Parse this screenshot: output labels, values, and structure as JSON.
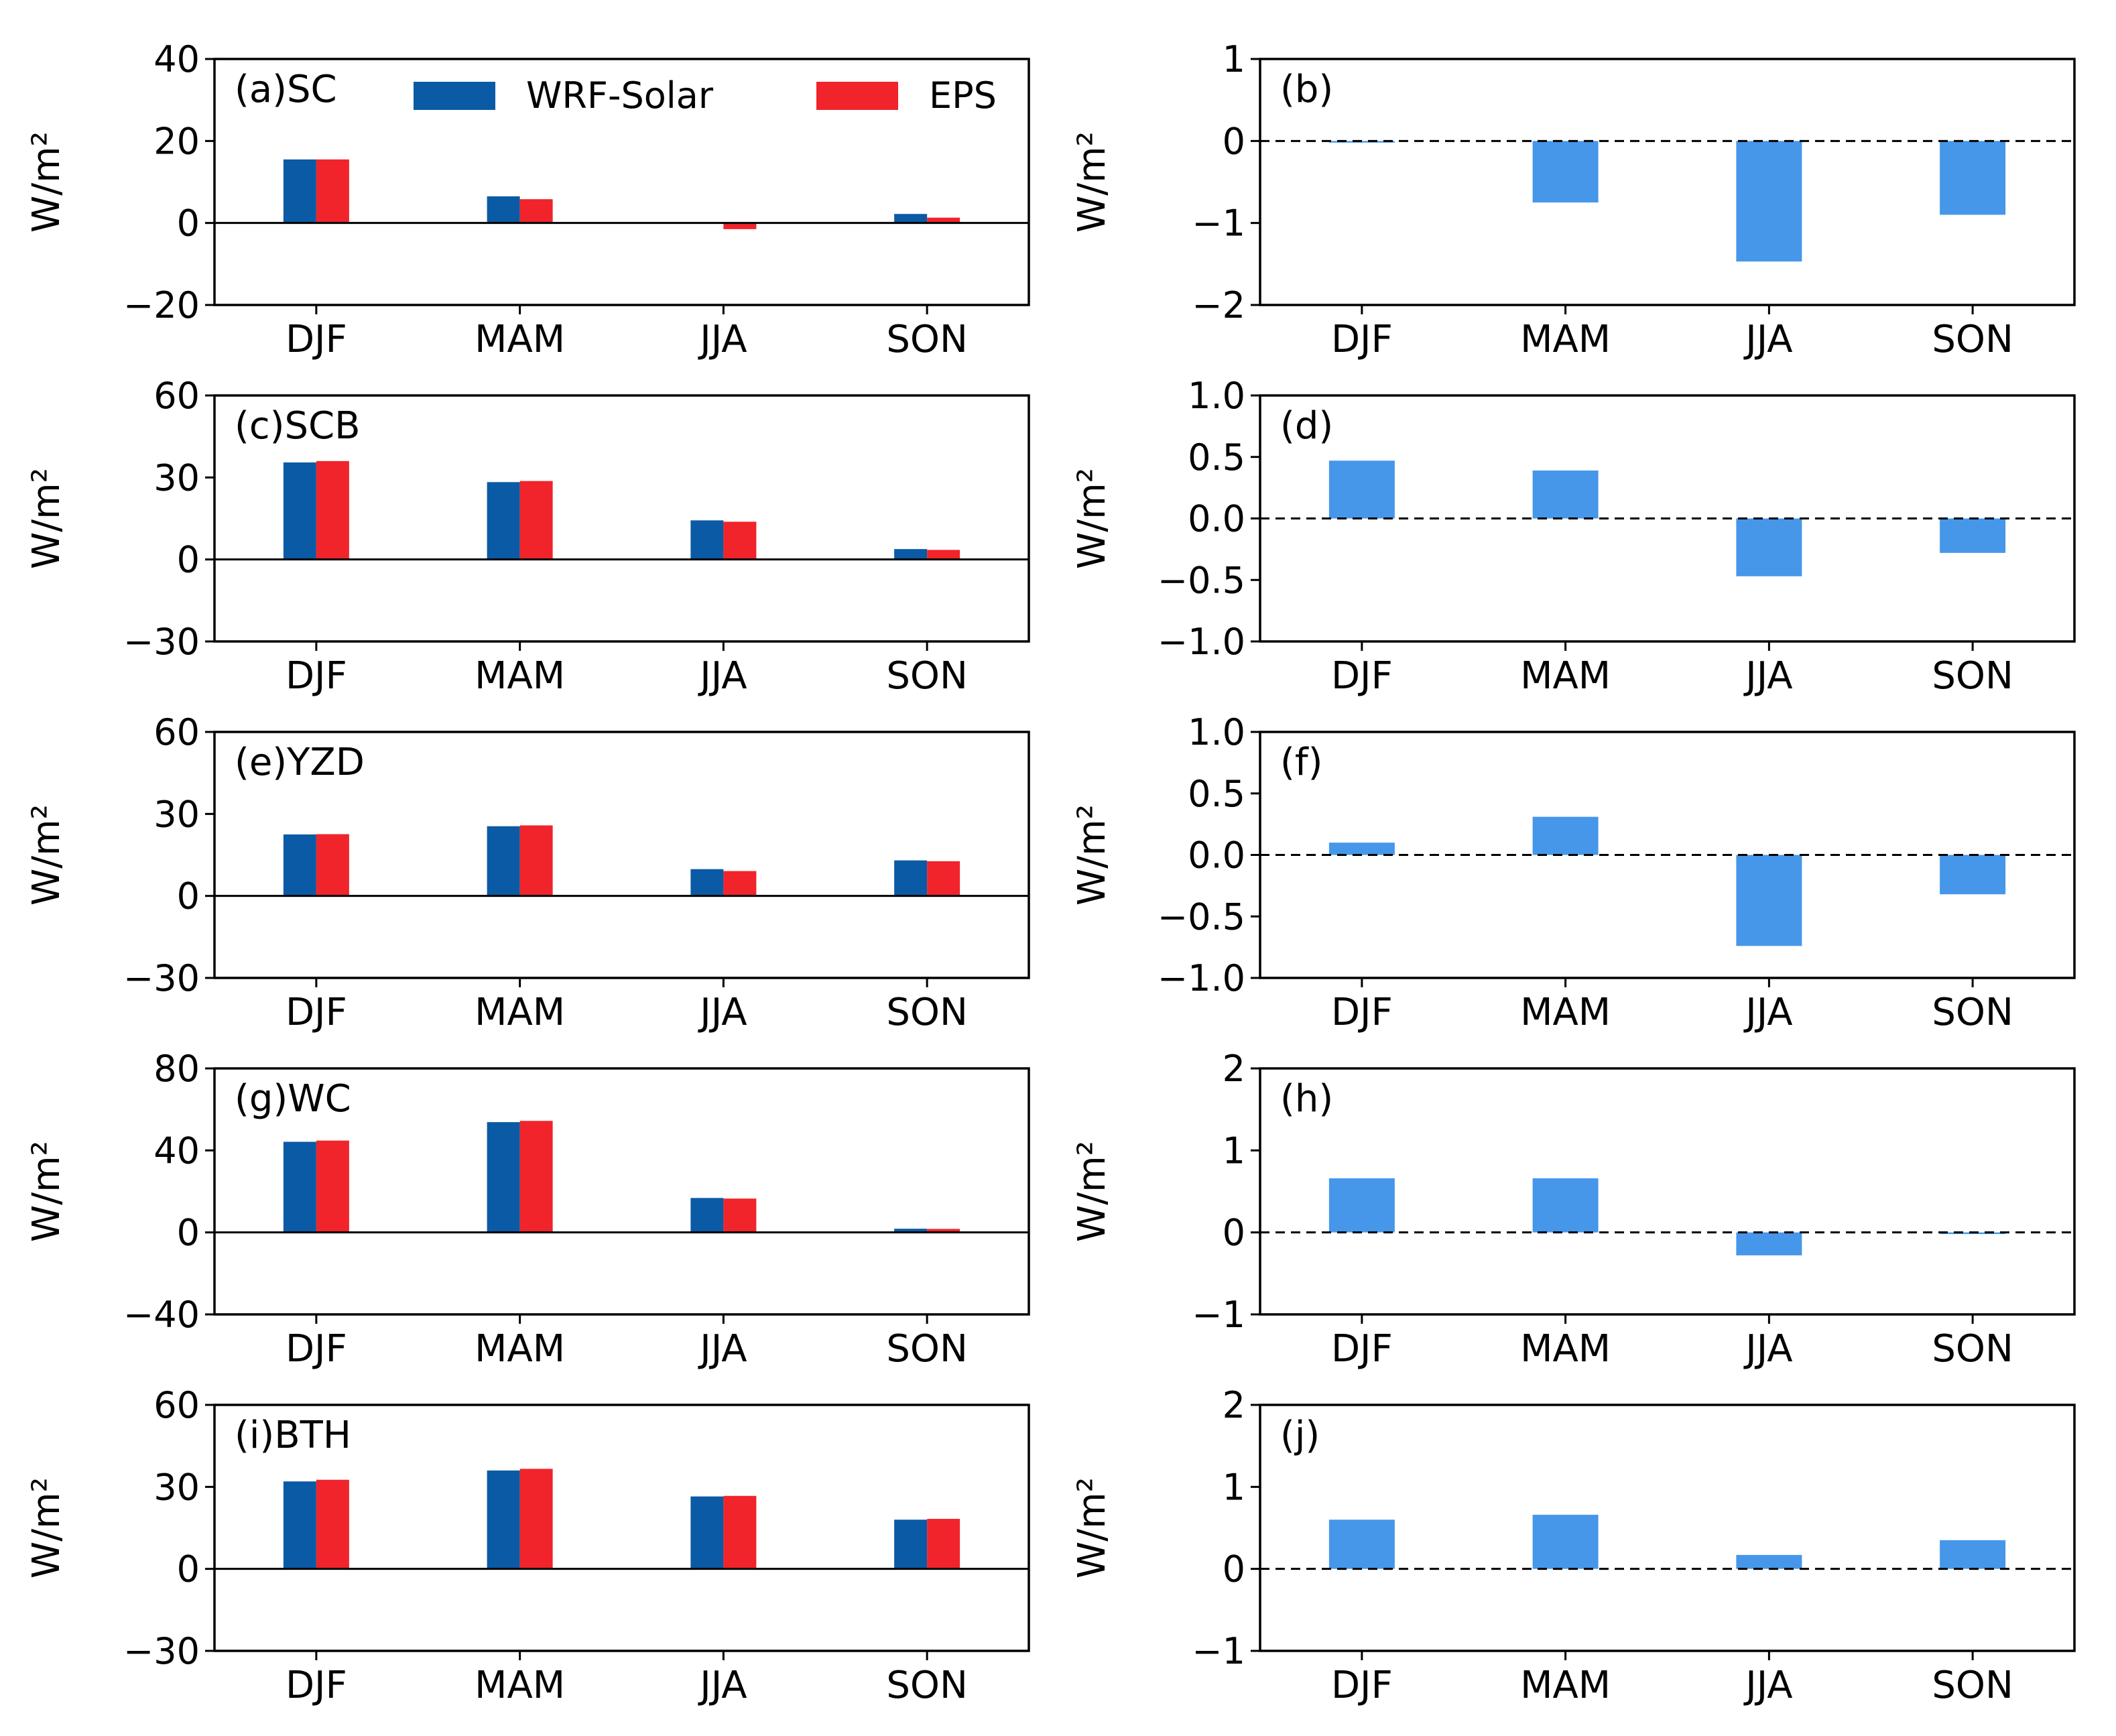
{
  "legend": {
    "items": [
      {
        "label": "WRF-Solar",
        "color": "#0b5aa5"
      },
      {
        "label": "EPS",
        "color": "#f0242a"
      }
    ],
    "diff_color": "#4697ea"
  },
  "chart_data": [
    {
      "id": "a",
      "label": "(a)SC",
      "type": "bar",
      "categories": [
        "DJF",
        "MAM",
        "JJA",
        "SON"
      ],
      "series": [
        {
          "name": "WRF-Solar",
          "values": [
            15.5,
            6.5,
            0.0,
            2.2
          ]
        },
        {
          "name": "EPS",
          "values": [
            15.5,
            5.8,
            -1.5,
            1.3
          ]
        }
      ],
      "ylabel": "W/m²",
      "ylim": [
        -20,
        40
      ],
      "yticks": [
        "−20",
        "0",
        "20",
        "40"
      ],
      "zero_line": "solid"
    },
    {
      "id": "b",
      "label": "(b)",
      "type": "bar",
      "categories": [
        "DJF",
        "MAM",
        "JJA",
        "SON"
      ],
      "values": [
        -0.02,
        -0.75,
        -1.47,
        -0.9
      ],
      "ylabel": "W/m²",
      "ylim": [
        -2,
        1
      ],
      "yticks": [
        "−2",
        "−1",
        "0",
        "1"
      ],
      "zero_line": "dashed"
    },
    {
      "id": "c",
      "label": "(c)SCB",
      "type": "bar",
      "categories": [
        "DJF",
        "MAM",
        "JJA",
        "SON"
      ],
      "series": [
        {
          "name": "WRF-Solar",
          "values": [
            35.5,
            28.3,
            14.3,
            3.8
          ]
        },
        {
          "name": "EPS",
          "values": [
            36.0,
            28.7,
            13.8,
            3.5
          ]
        }
      ],
      "ylabel": "W/m²",
      "ylim": [
        -30,
        60
      ],
      "yticks": [
        "−30",
        "0",
        "30",
        "60"
      ],
      "zero_line": "solid"
    },
    {
      "id": "d",
      "label": "(d)",
      "type": "bar",
      "categories": [
        "DJF",
        "MAM",
        "JJA",
        "SON"
      ],
      "values": [
        0.47,
        0.39,
        -0.47,
        -0.28
      ],
      "ylabel": "W/m²",
      "ylim": [
        -1.0,
        1.0
      ],
      "yticks": [
        "−1.0",
        "−0.5",
        "0.0",
        "0.5",
        "1.0"
      ],
      "zero_line": "dashed"
    },
    {
      "id": "e",
      "label": "(e)YZD",
      "type": "bar",
      "categories": [
        "DJF",
        "MAM",
        "JJA",
        "SON"
      ],
      "series": [
        {
          "name": "WRF-Solar",
          "values": [
            22.5,
            25.5,
            9.8,
            13.0
          ]
        },
        {
          "name": "EPS",
          "values": [
            22.6,
            25.8,
            9.1,
            12.7
          ]
        }
      ],
      "ylabel": "W/m²",
      "ylim": [
        -30,
        60
      ],
      "yticks": [
        "−30",
        "0",
        "30",
        "60"
      ],
      "zero_line": "solid"
    },
    {
      "id": "f",
      "label": "(f)",
      "type": "bar",
      "categories": [
        "DJF",
        "MAM",
        "JJA",
        "SON"
      ],
      "values": [
        0.1,
        0.31,
        -0.74,
        -0.32
      ],
      "ylabel": "W/m²",
      "ylim": [
        -1.0,
        1.0
      ],
      "yticks": [
        "−1.0",
        "−0.5",
        "0.0",
        "0.5",
        "1.0"
      ],
      "zero_line": "dashed"
    },
    {
      "id": "g",
      "label": "(g)WC",
      "type": "bar",
      "categories": [
        "DJF",
        "MAM",
        "JJA",
        "SON"
      ],
      "series": [
        {
          "name": "WRF-Solar",
          "values": [
            44.2,
            53.8,
            16.8,
            1.8
          ]
        },
        {
          "name": "EPS",
          "values": [
            44.8,
            54.4,
            16.5,
            1.7
          ]
        }
      ],
      "ylabel": "W/m²",
      "ylim": [
        -40,
        80
      ],
      "yticks": [
        "−40",
        "0",
        "40",
        "80"
      ],
      "zero_line": "solid"
    },
    {
      "id": "h",
      "label": "(h)",
      "type": "bar",
      "categories": [
        "DJF",
        "MAM",
        "JJA",
        "SON"
      ],
      "values": [
        0.66,
        0.66,
        -0.28,
        -0.02
      ],
      "ylabel": "W/m²",
      "ylim": [
        -1,
        2
      ],
      "yticks": [
        "−1",
        "0",
        "1",
        "2"
      ],
      "zero_line": "dashed"
    },
    {
      "id": "i",
      "label": "(i)BTH",
      "type": "bar",
      "categories": [
        "DJF",
        "MAM",
        "JJA",
        "SON"
      ],
      "series": [
        {
          "name": "WRF-Solar",
          "values": [
            32.0,
            36.0,
            26.5,
            18.0
          ]
        },
        {
          "name": "EPS",
          "values": [
            32.6,
            36.6,
            26.7,
            18.3
          ]
        }
      ],
      "ylabel": "W/m²",
      "ylim": [
        -30,
        60
      ],
      "yticks": [
        "−30",
        "0",
        "30",
        "60"
      ],
      "zero_line": "solid"
    },
    {
      "id": "j",
      "label": "(j)",
      "type": "bar",
      "categories": [
        "DJF",
        "MAM",
        "JJA",
        "SON"
      ],
      "values": [
        0.6,
        0.66,
        0.17,
        0.35
      ],
      "ylabel": "W/m²",
      "ylim": [
        -1,
        2
      ],
      "yticks": [
        "−1",
        "0",
        "1",
        "2"
      ],
      "zero_line": "dashed"
    }
  ]
}
